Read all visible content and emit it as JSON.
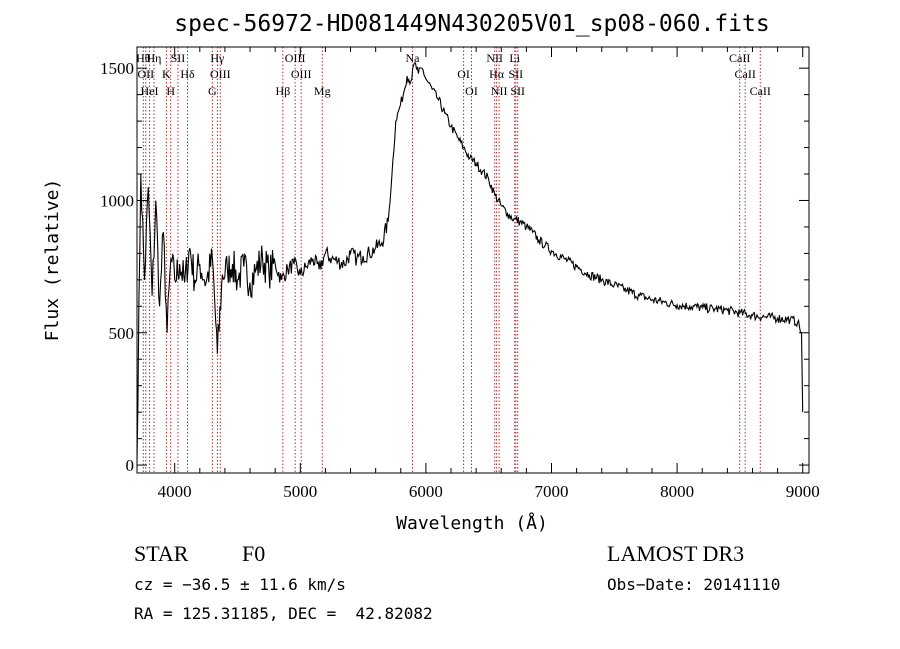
{
  "chart_data": {
    "type": "line",
    "title": "spec-56972-HD081449N430205V01_sp08-060.fits",
    "xlabel": "Wavelength (Å)",
    "ylabel": "Flux (relative)",
    "xlim": [
      3700,
      9050
    ],
    "ylim": [
      -30,
      1580
    ],
    "x_ticks": [
      4000,
      5000,
      6000,
      7000,
      8000,
      9000
    ],
    "x_tick_labels": [
      "4000",
      "5000",
      "6000",
      "7000",
      "8000",
      "9000"
    ],
    "y_ticks": [
      0,
      500,
      1000,
      1500
    ],
    "y_tick_labels": [
      "0",
      "500",
      "1000",
      "1500"
    ],
    "series": [
      {
        "name": "spectrum",
        "x": [
          3700,
          3730,
          3760,
          3790,
          3820,
          3850,
          3880,
          3910,
          3940,
          3970,
          4000,
          4040,
          4080,
          4120,
          4160,
          4200,
          4250,
          4300,
          4340,
          4380,
          4420,
          4460,
          4500,
          4550,
          4600,
          4650,
          4700,
          4750,
          4800,
          4850,
          4900,
          4950,
          5000,
          5050,
          5100,
          5150,
          5200,
          5250,
          5300,
          5350,
          5400,
          5450,
          5500,
          5550,
          5600,
          5650,
          5700,
          5730,
          5760,
          5790,
          5820,
          5850,
          5880,
          5910,
          5940,
          5970,
          6000,
          6050,
          6100,
          6150,
          6200,
          6250,
          6300,
          6350,
          6400,
          6450,
          6500,
          6550,
          6600,
          6650,
          6700,
          6750,
          6800,
          6850,
          6900,
          6950,
          7000,
          7100,
          7200,
          7300,
          7400,
          7500,
          7600,
          7700,
          7800,
          7900,
          8000,
          8100,
          8200,
          8300,
          8400,
          8500,
          8600,
          8700,
          8800,
          8900,
          8960,
          8990,
          9000
        ],
        "y": [
          20,
          1100,
          700,
          1050,
          640,
          1000,
          600,
          880,
          500,
          780,
          700,
          760,
          690,
          820,
          700,
          760,
          690,
          780,
          420,
          720,
          740,
          760,
          700,
          750,
          690,
          740,
          780,
          730,
          760,
          700,
          740,
          760,
          720,
          750,
          780,
          740,
          800,
          780,
          770,
          760,
          800,
          780,
          790,
          800,
          820,
          840,
          920,
          1100,
          1300,
          1350,
          1400,
          1470,
          1450,
          1520,
          1480,
          1500,
          1460,
          1420,
          1380,
          1330,
          1280,
          1240,
          1200,
          1160,
          1140,
          1110,
          1080,
          1020,
          980,
          950,
          930,
          920,
          900,
          880,
          850,
          830,
          810,
          780,
          750,
          720,
          700,
          680,
          660,
          640,
          625,
          615,
          605,
          600,
          595,
          590,
          585,
          575,
          565,
          560,
          555,
          550,
          540,
          500,
          200
        ]
      }
    ],
    "line_labels": [
      {
        "wavelength": 3750,
        "text": "Hθ"
      },
      {
        "wavelength": 3770,
        "text": "OII"
      },
      {
        "wavelength": 3800,
        "text": "HeI"
      },
      {
        "wavelength": 3835,
        "text": "Hη"
      },
      {
        "wavelength": 3934,
        "text": "K"
      },
      {
        "wavelength": 3968,
        "text": "H"
      },
      {
        "wavelength": 4026,
        "text": "SII"
      },
      {
        "wavelength": 4102,
        "text": "Hδ"
      },
      {
        "wavelength": 4300,
        "text": "G"
      },
      {
        "wavelength": 4340,
        "text": "Hγ"
      },
      {
        "wavelength": 4363,
        "text": "OIII"
      },
      {
        "wavelength": 4861,
        "text": "Hβ"
      },
      {
        "wavelength": 4959,
        "text": "OIII"
      },
      {
        "wavelength": 5007,
        "text": "OIII"
      },
      {
        "wavelength": 5175,
        "text": "Mg"
      },
      {
        "wavelength": 5893,
        "text": "Na"
      },
      {
        "wavelength": 6300,
        "text": "OI"
      },
      {
        "wavelength": 6363,
        "text": "OI"
      },
      {
        "wavelength": 6548,
        "text": "NII"
      },
      {
        "wavelength": 6563,
        "text": "Hα"
      },
      {
        "wavelength": 6583,
        "text": "NII"
      },
      {
        "wavelength": 6707,
        "text": "Li"
      },
      {
        "wavelength": 6716,
        "text": "SII"
      },
      {
        "wavelength": 6731,
        "text": "SII"
      },
      {
        "wavelength": 8498,
        "text": "CaII"
      },
      {
        "wavelength": 8542,
        "text": "CaII"
      },
      {
        "wavelength": 8662,
        "text": "CaII"
      }
    ],
    "grid": false,
    "legend": "none"
  },
  "info": {
    "class_label": "STAR",
    "subclass_label": "F0",
    "survey_label": "LAMOST DR3",
    "cz_text": "cz = −36.5 ± 11.6 km/s",
    "obs_date_text": "Obs−Date: 20141110",
    "coords_text": "RA = 125.31185, DEC =  42.82082"
  },
  "colors": {
    "spectrum": "#000000",
    "line_marker": "#b03030",
    "axis": "#000000"
  }
}
